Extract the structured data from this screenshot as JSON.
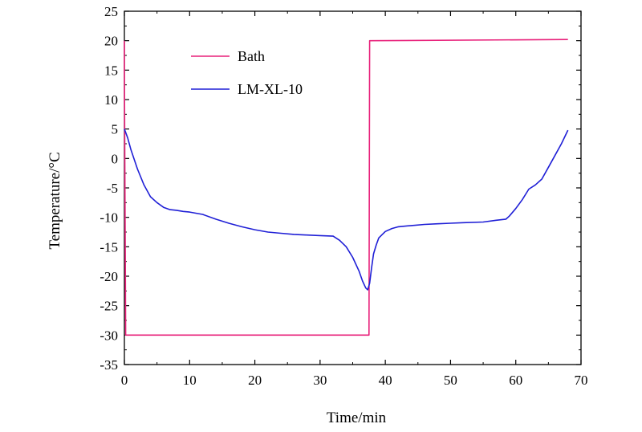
{
  "chart_data": {
    "type": "line",
    "title": "",
    "xlabel": "Time/min",
    "ylabel": "Temperature/°C",
    "xlim": [
      0,
      70
    ],
    "ylim": [
      -35,
      25
    ],
    "x_ticks": [
      0,
      10,
      20,
      30,
      40,
      50,
      60,
      70
    ],
    "y_ticks": [
      -35,
      -30,
      -25,
      -20,
      -15,
      -10,
      -5,
      0,
      5,
      10,
      15,
      20,
      25
    ],
    "x_tick_labels": [
      "0",
      "10",
      "20",
      "30",
      "40",
      "50",
      "60",
      "70"
    ],
    "y_tick_labels": [
      "-35",
      "-30",
      "-25",
      "-20",
      "-15",
      "-10",
      "-5",
      "0",
      "5",
      "10",
      "15",
      "20",
      "25"
    ],
    "grid": false,
    "legend_position": "top-left",
    "series": [
      {
        "name": "Bath",
        "color": "#e8207a",
        "x": [
          0,
          0,
          0.2,
          37.5,
          37.6,
          68.0
        ],
        "y": [
          20,
          15,
          -30,
          -30,
          20,
          20.2
        ]
      },
      {
        "name": "LM-XL-10",
        "color": "#1f1fd6",
        "x": [
          0,
          0.5,
          1,
          2,
          3,
          4,
          5,
          6,
          7,
          8,
          9,
          10,
          12,
          14,
          16,
          18,
          20,
          22,
          24,
          26,
          28,
          30,
          32,
          33,
          34,
          35,
          36,
          36.5,
          37,
          37.3,
          37.6,
          37.9,
          38.2,
          38.6,
          39,
          40,
          41,
          42,
          44,
          46,
          48,
          50,
          52,
          55,
          57,
          58.5,
          59,
          60,
          61,
          62,
          63,
          64,
          65,
          66,
          67,
          68
        ],
        "y": [
          5,
          3.5,
          1.5,
          -1.8,
          -4.5,
          -6.5,
          -7.5,
          -8.3,
          -8.7,
          -8.8,
          -9.0,
          -9.1,
          -9.5,
          -10.3,
          -11.0,
          -11.6,
          -12.1,
          -12.5,
          -12.7,
          -12.9,
          -13.0,
          -13.1,
          -13.2,
          -13.9,
          -15.0,
          -16.8,
          -19.2,
          -20.8,
          -22.0,
          -22.3,
          -21.2,
          -18.5,
          -16.2,
          -14.7,
          -13.5,
          -12.4,
          -11.9,
          -11.6,
          -11.4,
          -11.2,
          -11.1,
          -11.0,
          -10.9,
          -10.8,
          -10.5,
          -10.3,
          -9.8,
          -8.5,
          -7.0,
          -5.2,
          -4.5,
          -3.5,
          -1.5,
          0.5,
          2.5,
          4.8
        ]
      }
    ]
  }
}
